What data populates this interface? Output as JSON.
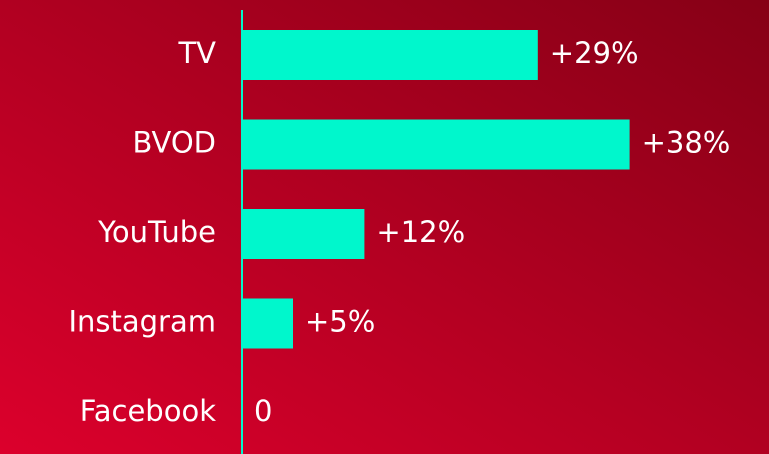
{
  "chart_data": {
    "type": "bar",
    "orientation": "horizontal",
    "categories": [
      "TV",
      "BVOD",
      "YouTube",
      "Instagram",
      "Facebook"
    ],
    "values": [
      29,
      38,
      12,
      5,
      0
    ],
    "value_labels": [
      "+29%",
      "+38%",
      "+12%",
      "+5%",
      "0"
    ],
    "color": "#00f7cc"
  }
}
